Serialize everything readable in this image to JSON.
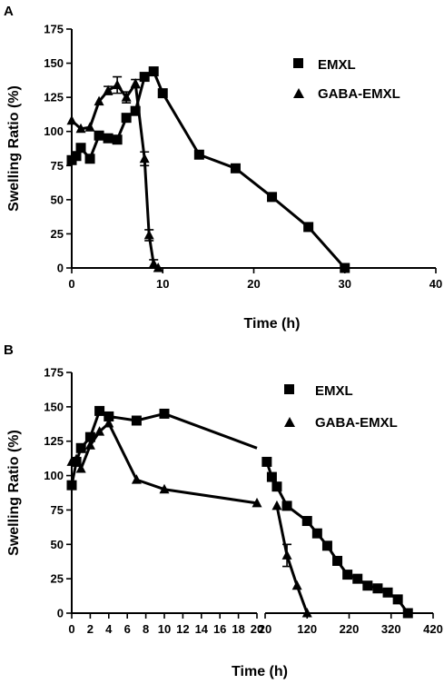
{
  "chart_data": [
    {
      "panel": "A",
      "type": "line",
      "xlabel": "Time (h)",
      "ylabel": "Swelling Ratio (%)",
      "xlim": [
        0,
        40
      ],
      "ylim": [
        0,
        175
      ],
      "xticks": [
        0,
        10,
        20,
        30,
        40
      ],
      "yticks": [
        0,
        25,
        50,
        75,
        100,
        125,
        150,
        175
      ],
      "legend_position": "top-right",
      "series": [
        {
          "name": "EMXL",
          "marker": "square",
          "x": [
            0,
            0.5,
            1,
            2,
            3,
            4,
            5,
            6,
            7,
            8,
            9,
            10,
            14,
            18,
            22,
            26,
            30
          ],
          "y": [
            79,
            82,
            88,
            80,
            97,
            95,
            94,
            110,
            115,
            140,
            144,
            128,
            83,
            73,
            52,
            30,
            0
          ]
        },
        {
          "name": "GABA-EMXL",
          "marker": "triangle",
          "x": [
            0,
            1,
            2,
            3,
            4,
            5,
            6,
            7,
            8,
            8.5,
            9,
            9.5
          ],
          "y": [
            108,
            102,
            103,
            122,
            130,
            134,
            125,
            135,
            80,
            24,
            3,
            0
          ],
          "err": [
            0,
            0,
            0,
            0,
            3,
            6,
            4,
            3,
            5,
            4,
            3,
            0
          ]
        }
      ]
    },
    {
      "panel": "B",
      "type": "line",
      "xlabel": "Time (h)",
      "ylabel": "Swelling Ratio (%)",
      "ylim": [
        0,
        175
      ],
      "yticks": [
        0,
        25,
        50,
        75,
        100,
        125,
        150,
        175
      ],
      "x_segments": [
        {
          "xlim": [
            0,
            20
          ],
          "xticks": [
            0,
            2,
            4,
            6,
            8,
            10,
            12,
            14,
            16,
            18,
            20
          ]
        },
        {
          "xlim": [
            20,
            420
          ],
          "xticks": [
            20,
            120,
            220,
            320,
            420
          ]
        }
      ],
      "legend_position": "top-right",
      "series": [
        {
          "name": "EMXL",
          "marker": "square",
          "x": [
            0,
            0.5,
            1,
            2,
            3,
            4,
            7,
            10,
            24,
            36,
            48,
            72,
            120,
            144,
            168,
            192,
            216,
            240,
            264,
            288,
            312,
            336,
            360
          ],
          "y": [
            93,
            110,
            120,
            128,
            147,
            143,
            140,
            145,
            110,
            99,
            92,
            78,
            67,
            58,
            49,
            38,
            28,
            25,
            20,
            18,
            15,
            10,
            0
          ]
        },
        {
          "name": "GABA-EMXL",
          "marker": "triangle",
          "x": [
            0,
            0.5,
            1,
            2,
            3,
            4,
            7,
            10,
            20,
            48,
            72,
            96,
            120
          ],
          "y": [
            110,
            112,
            105,
            122,
            132,
            138,
            97,
            90,
            80,
            78,
            42,
            20,
            0
          ],
          "err": [
            0,
            0,
            0,
            0,
            0,
            0,
            0,
            0,
            0,
            0,
            8,
            0,
            0
          ]
        }
      ]
    }
  ]
}
